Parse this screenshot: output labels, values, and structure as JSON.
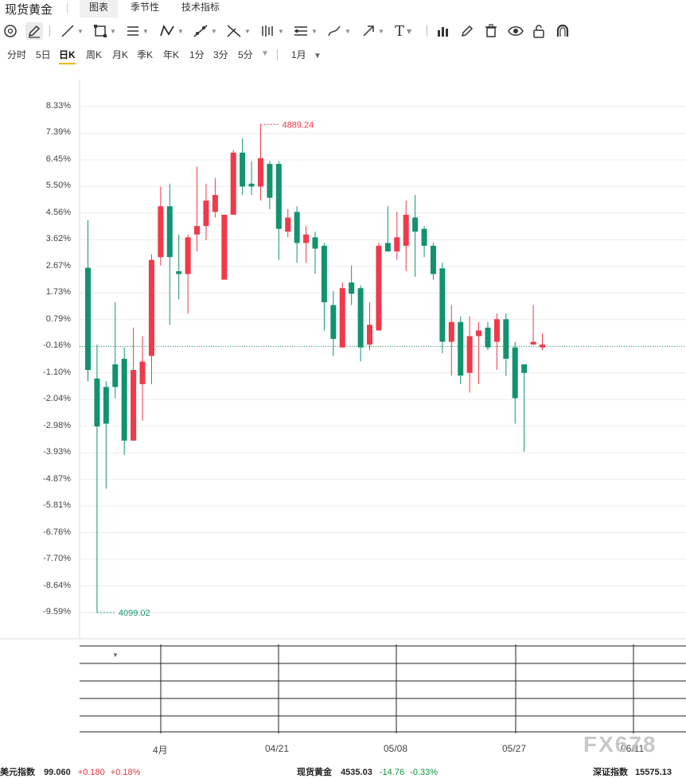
{
  "header": {
    "title": "现货黄金",
    "tabs": [
      "图表",
      "季节性",
      "技术指标"
    ],
    "active_tab": 0
  },
  "toolbar": {
    "tools": [
      "cursor-icon",
      "draw-icon",
      "line-icon",
      "rect-icon",
      "channel-icon",
      "pattern-icon",
      "fib-icon",
      "gann-icon",
      "bars-icon",
      "measure-icon",
      "brush-icon",
      "arrow-icon",
      "text-icon",
      "indicator-icon",
      "pencil-icon",
      "trash-icon",
      "eye-icon",
      "lock-icon",
      "magnet-icon"
    ],
    "text_tool_glyph": "T"
  },
  "periods": {
    "items": [
      "分时",
      "5日",
      "日K",
      "周K",
      "月K",
      "季K",
      "年K",
      "1分",
      "3分",
      "5分"
    ],
    "active": "日K",
    "range": "1月"
  },
  "chart": {
    "y_labels": [
      "8.33%",
      "7.39%",
      "6.45%",
      "5.50%",
      "4.56%",
      "3.62%",
      "2.67%",
      "1.73%",
      "0.79%",
      "-0.16%",
      "-1.10%",
      "-2.04%",
      "-2.98%",
      "-3.93%",
      "-4.87%",
      "-5.81%",
      "-6.76%",
      "-7.70%",
      "-8.64%",
      "-9.59%"
    ],
    "x_labels": [
      "4月",
      "04/21",
      "05/08",
      "05/27",
      "06/11"
    ],
    "max_label": "4889.24",
    "min_label": "4099.02",
    "colors": {
      "up": "#f0394a",
      "down": "#12936e",
      "last_line": "#2e9e6a"
    }
  },
  "watermark": "FX678",
  "ticker": [
    {
      "name": "美元指数",
      "price": "99.060",
      "change": "+0.180",
      "pct": "+0.18%",
      "dir": "up"
    },
    {
      "name": "现货黄金",
      "price": "4535.03",
      "change": "-14.76",
      "pct": "-0.33%",
      "dir": "down"
    },
    {
      "name": "深证指数",
      "price": "15575.13",
      "change": "",
      "pct": "",
      "dir": "up"
    }
  ],
  "chart_data": {
    "type": "candlestick",
    "y_unit": "%",
    "ylim": [
      -9.59,
      8.33
    ],
    "candles": [
      [
        2.62,
        -1.0,
        4.3,
        -1.4
      ],
      [
        -1.3,
        -3.0,
        -0.1,
        -9.59
      ],
      [
        -1.6,
        -2.9,
        -1.4,
        -5.2
      ],
      [
        -0.8,
        -1.6,
        1.4,
        -2.0
      ],
      [
        -0.6,
        -3.5,
        -0.2,
        -4.0
      ],
      [
        -3.5,
        -1.0,
        0.5,
        -3.5
      ],
      [
        -1.5,
        -0.7,
        0.2,
        -2.8
      ],
      [
        -0.5,
        2.9,
        3.1,
        -1.5
      ],
      [
        3.0,
        4.8,
        5.5,
        2.7
      ],
      [
        4.8,
        3.0,
        5.6,
        0.6
      ],
      [
        2.5,
        2.4,
        3.8,
        1.5
      ],
      [
        2.4,
        3.7,
        3.8,
        1.0
      ],
      [
        3.8,
        4.1,
        6.2,
        3.2
      ],
      [
        4.1,
        5.0,
        5.6,
        3.6
      ],
      [
        4.6,
        5.2,
        5.8,
        4.4
      ],
      [
        2.2,
        4.5,
        4.5,
        2.2
      ],
      [
        4.5,
        6.7,
        6.8,
        4.5
      ],
      [
        6.7,
        5.5,
        7.2,
        5.2
      ],
      [
        5.6,
        5.5,
        6.4,
        5.2
      ],
      [
        5.5,
        6.5,
        7.7,
        5.0
      ],
      [
        6.3,
        5.1,
        6.4,
        4.7
      ],
      [
        6.3,
        4.0,
        6.4,
        2.9
      ],
      [
        3.9,
        4.4,
        4.7,
        3.7
      ],
      [
        4.6,
        3.5,
        4.8,
        2.8
      ],
      [
        3.5,
        3.8,
        4.1,
        2.8
      ],
      [
        3.7,
        3.3,
        3.9,
        2.4
      ],
      [
        3.4,
        1.4,
        3.5,
        0.4
      ],
      [
        1.3,
        0.1,
        1.8,
        -0.5
      ],
      [
        -0.2,
        1.9,
        2.1,
        -0.2
      ],
      [
        2.1,
        1.7,
        2.7,
        1.3
      ],
      [
        1.9,
        -0.2,
        2.0,
        -0.7
      ],
      [
        -0.1,
        0.6,
        1.4,
        -0.3
      ],
      [
        0.4,
        3.4,
        3.5,
        0.4
      ],
      [
        3.5,
        3.2,
        4.8,
        3.2
      ],
      [
        3.2,
        3.7,
        4.6,
        2.9
      ],
      [
        3.4,
        4.5,
        5.0,
        2.5
      ],
      [
        4.4,
        3.9,
        5.2,
        2.3
      ],
      [
        4.0,
        3.4,
        4.1,
        3.0
      ],
      [
        3.4,
        2.4,
        3.5,
        2.2
      ],
      [
        2.6,
        0.0,
        2.8,
        -0.4
      ],
      [
        0.0,
        0.7,
        1.3,
        -1.2
      ],
      [
        0.7,
        -1.2,
        0.9,
        -1.5
      ],
      [
        -1.1,
        0.2,
        0.9,
        -1.8
      ],
      [
        0.2,
        0.4,
        0.7,
        -1.5
      ],
      [
        0.5,
        -0.2,
        0.7,
        -0.3
      ],
      [
        0.0,
        0.8,
        1.0,
        -1.0
      ],
      [
        0.8,
        -0.6,
        1.0,
        -1.2
      ],
      [
        -0.2,
        -2.0,
        0.0,
        -2.9
      ],
      [
        -0.8,
        -1.1,
        -0.8,
        -3.9
      ],
      [
        -0.1,
        0.0,
        1.3,
        -0.1
      ],
      [
        -0.2,
        -0.1,
        0.3,
        -0.3
      ]
    ],
    "candle_fields": [
      "open",
      "close",
      "high",
      "low"
    ],
    "last_value": -0.16,
    "max_point": 4889.24,
    "min_point": 4099.02
  }
}
